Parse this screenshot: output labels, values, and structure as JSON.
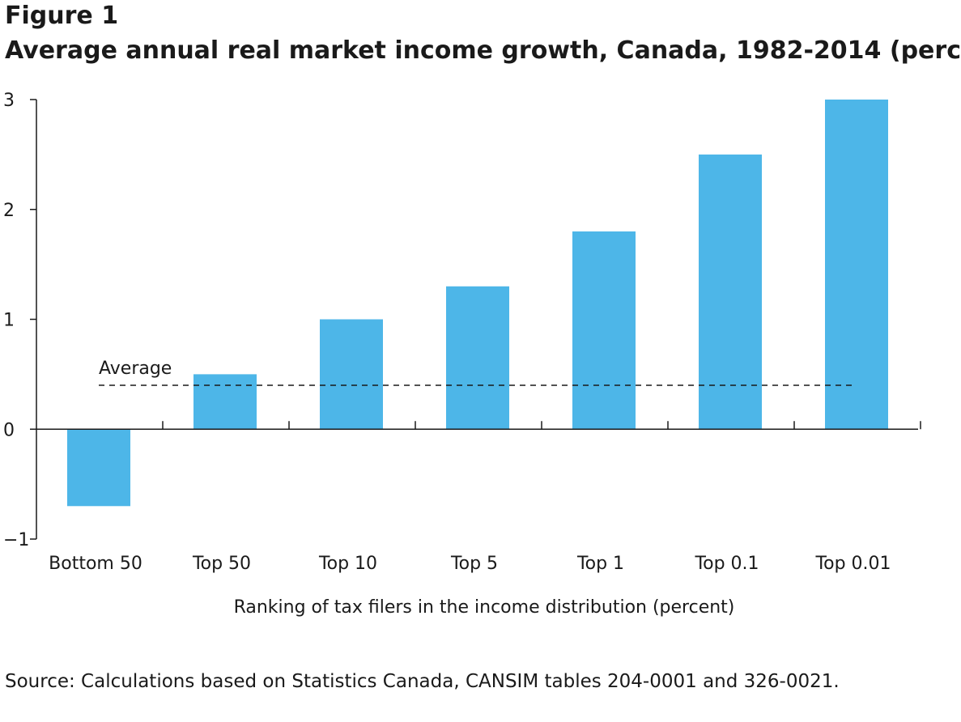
{
  "figure_label": "Figure 1",
  "title": "Average annual real market income growth, Canada, 1982-2014 (perc",
  "source": "Source: Calculations based on Statistics Canada, CANSIM tables 204-0001 and 326-0021.",
  "chart_data": {
    "type": "bar",
    "title": "Average annual real market income growth, Canada, 1982-2014 (perc",
    "xlabel": "Ranking of tax filers in the income distribution (percent)",
    "ylabel": "",
    "categories": [
      "Bottom 50",
      "Top 50",
      "Top 10",
      "Top 5",
      "Top 1",
      "Top 0.1",
      "Top 0.01"
    ],
    "values": [
      -0.7,
      0.5,
      1.0,
      1.3,
      1.8,
      2.5,
      3.0
    ],
    "ylim": [
      -1,
      3
    ],
    "yticks": [
      -1,
      0,
      1,
      2,
      3
    ],
    "ytick_labels": [
      "−1",
      "0",
      "1",
      "2",
      "3"
    ],
    "grid": false,
    "bar_color": "#4db6e8",
    "reference_line": {
      "label": "Average",
      "value": 0.4,
      "style": "dashed"
    }
  }
}
